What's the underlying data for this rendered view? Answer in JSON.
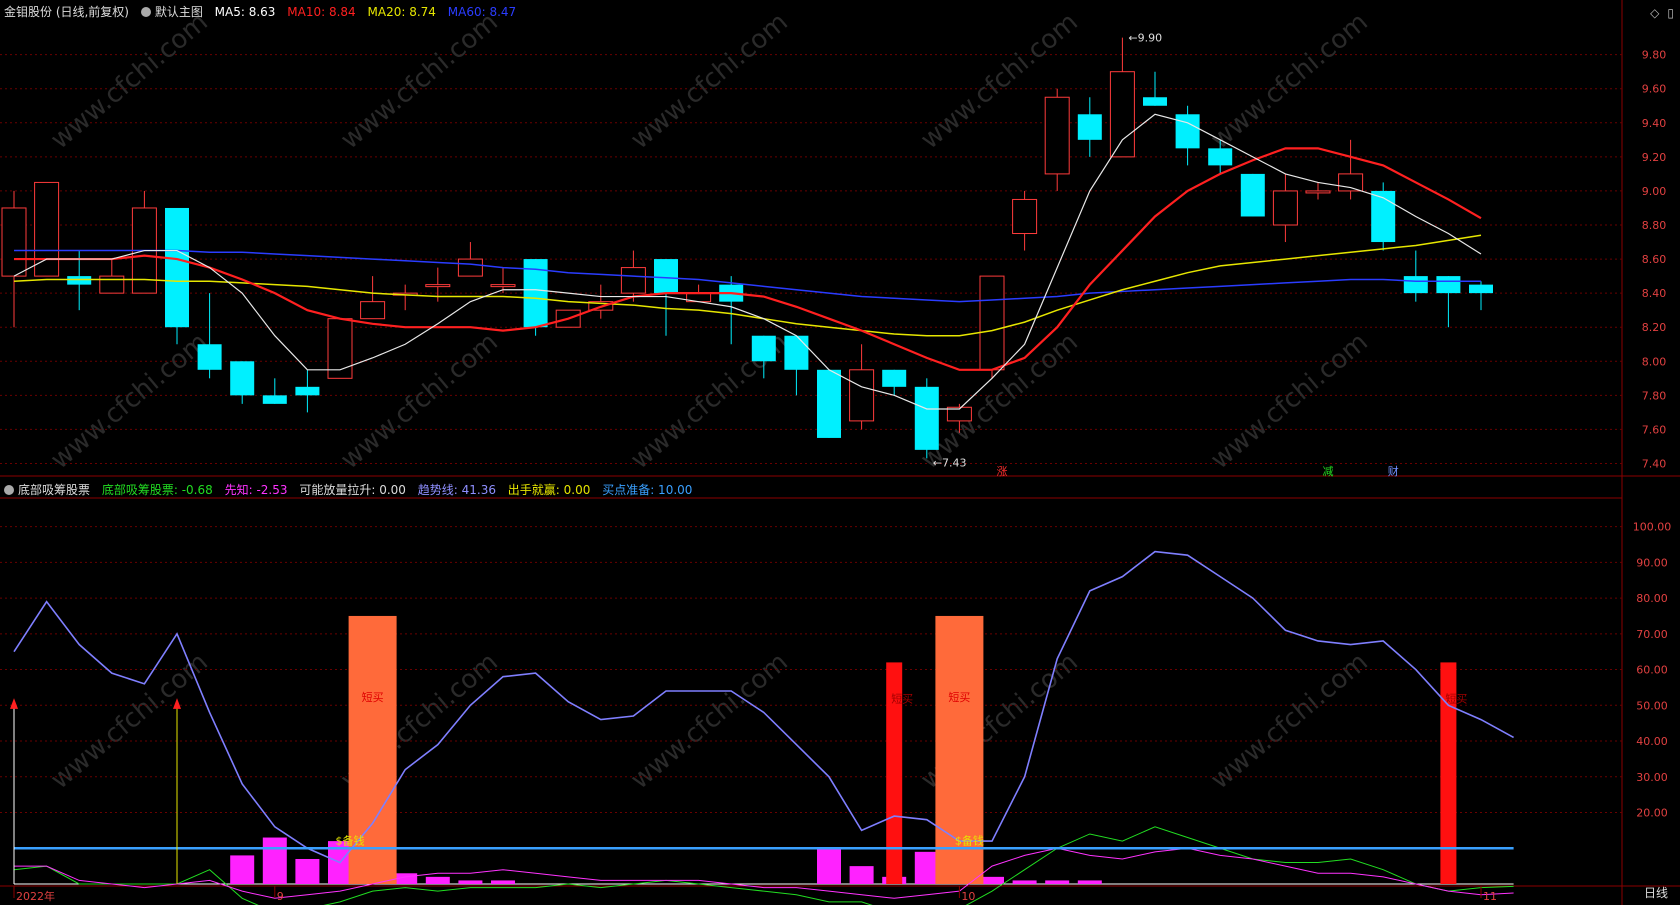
{
  "header_top": {
    "stock": "金钼股份 (日线,前复权)",
    "main_chart": "默认主图",
    "ma": [
      {
        "label": "MA5: 8.63",
        "color": "#ffffff"
      },
      {
        "label": "MA10: 8.84",
        "color": "#ff2020"
      },
      {
        "label": "MA20: 8.74",
        "color": "#e6e600"
      },
      {
        "label": "MA60: 8.47",
        "color": "#2a3cff"
      }
    ]
  },
  "header_bottom": {
    "indicator": "底部吸筹股票",
    "values": [
      {
        "label": "底部吸筹股票: -0.68",
        "color": "#22dd22"
      },
      {
        "label": "先知: -2.53",
        "color": "#ff33ff"
      },
      {
        "label": "可能放量拉升: 0.00",
        "color": "#dddddd"
      },
      {
        "label": "趋势线: 41.36",
        "color": "#8f8fff"
      },
      {
        "label": "出手就赢: 0.00",
        "color": "#e6e600"
      },
      {
        "label": "买点准备: 10.00",
        "color": "#3aa0ff"
      }
    ]
  },
  "toolbar_icons": [
    "diamond-icon",
    "close-icon"
  ],
  "watermark": "www.cfchi.com",
  "period_label": "日线",
  "chart_data": [
    {
      "type": "candlestick",
      "ylim": [
        7.35,
        9.98
      ],
      "yticks": [
        "9.80",
        "9.60",
        "9.40",
        "9.20",
        "9.00",
        "8.80",
        "8.60",
        "8.40",
        "8.20",
        "8.00",
        "7.80",
        "7.60",
        "7.40"
      ],
      "candles": [
        [
          8.5,
          8.9,
          9.0,
          8.2
        ],
        [
          8.5,
          9.05,
          9.05,
          8.5
        ],
        [
          8.5,
          8.45,
          8.65,
          8.3
        ],
        [
          8.4,
          8.5,
          8.6,
          8.4
        ],
        [
          8.4,
          8.9,
          9.0,
          8.4
        ],
        [
          8.9,
          8.2,
          8.9,
          8.1
        ],
        [
          8.1,
          7.95,
          8.4,
          7.9
        ],
        [
          8.0,
          7.8,
          8.0,
          7.75
        ],
        [
          7.8,
          7.75,
          7.9,
          7.75
        ],
        [
          7.85,
          7.8,
          7.95,
          7.7
        ],
        [
          7.9,
          8.25,
          8.25,
          7.9
        ],
        [
          8.25,
          8.35,
          8.5,
          8.25
        ],
        [
          8.4,
          8.4,
          8.45,
          8.3
        ],
        [
          8.45,
          8.45,
          8.55,
          8.35
        ],
        [
          8.5,
          8.6,
          8.7,
          8.5
        ],
        [
          8.45,
          8.45,
          8.55,
          8.4
        ],
        [
          8.6,
          8.2,
          8.6,
          8.15
        ],
        [
          8.2,
          8.3,
          8.3,
          8.2
        ],
        [
          8.3,
          8.35,
          8.45,
          8.25
        ],
        [
          8.4,
          8.55,
          8.65,
          8.35
        ],
        [
          8.6,
          8.4,
          8.6,
          8.15
        ],
        [
          8.35,
          8.4,
          8.45,
          8.35
        ],
        [
          8.45,
          8.35,
          8.5,
          8.1
        ],
        [
          8.15,
          8.0,
          8.15,
          7.9
        ],
        [
          8.15,
          7.95,
          8.15,
          7.8
        ],
        [
          7.95,
          7.55,
          7.95,
          7.55
        ],
        [
          7.65,
          7.95,
          8.1,
          7.6
        ],
        [
          7.95,
          7.85,
          7.95,
          7.8
        ],
        [
          7.85,
          7.48,
          7.9,
          7.43
        ],
        [
          7.65,
          7.73,
          7.75,
          7.58
        ],
        [
          7.95,
          8.5,
          8.5,
          7.9
        ],
        [
          8.75,
          8.95,
          9.0,
          8.65
        ],
        [
          9.1,
          9.55,
          9.6,
          9.0
        ],
        [
          9.45,
          9.3,
          9.55,
          9.2
        ],
        [
          9.2,
          9.7,
          9.9,
          9.2
        ],
        [
          9.55,
          9.5,
          9.7,
          9.5
        ],
        [
          9.45,
          9.25,
          9.5,
          9.15
        ],
        [
          9.25,
          9.15,
          9.3,
          9.1
        ],
        [
          9.1,
          8.85,
          9.1,
          8.85
        ],
        [
          8.8,
          9.0,
          9.1,
          8.7
        ],
        [
          9.0,
          9.0,
          9.05,
          8.95
        ],
        [
          9.0,
          9.1,
          9.3,
          8.95
        ],
        [
          9.0,
          8.7,
          9.05,
          8.65
        ],
        [
          8.5,
          8.4,
          8.65,
          8.35
        ],
        [
          8.5,
          8.4,
          8.5,
          8.2
        ],
        [
          8.45,
          8.4,
          8.47,
          8.3
        ]
      ],
      "ma5": [
        8.5,
        8.6,
        8.6,
        8.6,
        8.65,
        8.65,
        8.55,
        8.4,
        8.15,
        7.95,
        7.95,
        8.02,
        8.1,
        8.22,
        8.35,
        8.42,
        8.42,
        8.4,
        8.38,
        8.38,
        8.38,
        8.35,
        8.32,
        8.25,
        8.15,
        7.95,
        7.85,
        7.8,
        7.72,
        7.72,
        7.9,
        8.1,
        8.55,
        9.0,
        9.3,
        9.45,
        9.4,
        9.3,
        9.2,
        9.1,
        9.05,
        9.02,
        8.96,
        8.85,
        8.75,
        8.63
      ],
      "ma10": [
        8.6,
        8.6,
        8.6,
        8.6,
        8.62,
        8.6,
        8.55,
        8.48,
        8.4,
        8.3,
        8.25,
        8.22,
        8.2,
        8.2,
        8.2,
        8.18,
        8.2,
        8.25,
        8.32,
        8.38,
        8.4,
        8.4,
        8.4,
        8.38,
        8.32,
        8.25,
        8.18,
        8.1,
        8.02,
        7.95,
        7.95,
        8.02,
        8.2,
        8.45,
        8.65,
        8.85,
        9.0,
        9.1,
        9.18,
        9.25,
        9.25,
        9.2,
        9.15,
        9.05,
        8.95,
        8.84
      ],
      "ma20": [
        8.47,
        8.48,
        8.48,
        8.48,
        8.48,
        8.47,
        8.47,
        8.46,
        8.45,
        8.44,
        8.42,
        8.4,
        8.39,
        8.38,
        8.38,
        8.38,
        8.37,
        8.35,
        8.34,
        8.33,
        8.31,
        8.3,
        8.28,
        8.25,
        8.22,
        8.2,
        8.18,
        8.16,
        8.15,
        8.15,
        8.18,
        8.23,
        8.3,
        8.36,
        8.42,
        8.47,
        8.52,
        8.56,
        8.58,
        8.6,
        8.62,
        8.64,
        8.66,
        8.68,
        8.71,
        8.74
      ],
      "ma60": [
        8.65,
        8.65,
        8.65,
        8.65,
        8.65,
        8.65,
        8.64,
        8.64,
        8.63,
        8.62,
        8.61,
        8.6,
        8.59,
        8.58,
        8.57,
        8.55,
        8.54,
        8.52,
        8.51,
        8.5,
        8.49,
        8.48,
        8.46,
        8.44,
        8.42,
        8.4,
        8.38,
        8.37,
        8.36,
        8.35,
        8.36,
        8.37,
        8.38,
        8.4,
        8.41,
        8.42,
        8.43,
        8.44,
        8.45,
        8.46,
        8.47,
        8.48,
        8.48,
        8.47,
        8.47,
        8.47
      ],
      "high_label": "9.90",
      "low_label": "7.43",
      "event_markers": [
        {
          "index": 30,
          "text": "涨",
          "color": "#ff3030"
        },
        {
          "index": 40,
          "text": "减",
          "color": "#22dd22"
        },
        {
          "index": 42,
          "text": "财",
          "color": "#6f8fff"
        }
      ]
    },
    {
      "type": "indicator",
      "ylim": [
        0,
        108
      ],
      "yticks": [
        "100.00",
        "90.00",
        "80.00",
        "70.00",
        "60.00",
        "50.00",
        "40.00",
        "30.00",
        "20.00"
      ],
      "trend_line": [
        65,
        79,
        67,
        59,
        56,
        70,
        48,
        28,
        16,
        10,
        6,
        17,
        32,
        39,
        50,
        58,
        59,
        51,
        46,
        47,
        54,
        54,
        54,
        48,
        39,
        30,
        15,
        19,
        18,
        12,
        12,
        30,
        63,
        82,
        86,
        93,
        92,
        86,
        80,
        71,
        68,
        67,
        68,
        60,
        50,
        46,
        41
      ],
      "buy_ready_level": 10,
      "green_line": [
        4,
        5,
        0,
        0,
        0,
        0,
        4,
        -4,
        -8,
        -7,
        -5,
        -2,
        -1,
        -2,
        -1,
        -1,
        -1,
        0,
        -1,
        0,
        1,
        0,
        -1,
        -2,
        -3,
        -5,
        -5,
        -8,
        -9,
        -7,
        -2,
        4,
        10,
        14,
        12,
        16,
        13,
        10,
        7,
        6,
        6,
        7,
        4,
        0,
        -2,
        -1,
        -0.68
      ],
      "magenta_line": [
        5,
        5,
        1,
        0,
        -1,
        0,
        1,
        -2,
        -4,
        -3,
        -2,
        0,
        2,
        3,
        3,
        4,
        3,
        2,
        1,
        1,
        1,
        1,
        0,
        -1,
        -1,
        -2,
        -3,
        -4,
        -3,
        -2,
        5,
        8,
        10,
        8,
        7,
        9,
        10,
        8,
        7,
        5,
        3,
        3,
        2,
        0,
        -2,
        -3,
        -2.53
      ],
      "magenta_bars": [
        [
          7,
          8
        ],
        [
          8,
          13
        ],
        [
          9,
          7
        ],
        [
          10,
          12
        ],
        [
          12,
          3
        ],
        [
          13,
          2
        ],
        [
          14,
          1
        ],
        [
          15,
          1
        ],
        [
          25,
          10
        ],
        [
          26,
          5
        ],
        [
          27,
          2
        ],
        [
          28,
          9
        ],
        [
          30,
          2
        ],
        [
          31,
          1
        ],
        [
          32,
          1
        ],
        [
          33,
          1
        ]
      ],
      "orange_bars": [
        [
          11,
          75
        ],
        [
          29,
          75
        ]
      ],
      "red_bars": [
        {
          "index": 27,
          "value": 62,
          "label": "短买"
        },
        {
          "index": 44,
          "value": 62,
          "label": "短买"
        }
      ],
      "red_arrows": [
        0,
        5
      ],
      "cash_labels": [
        {
          "index": 10,
          "text": "$备钱"
        },
        {
          "index": 29,
          "text": "$备钱"
        }
      ],
      "orange_bar_label": "短买",
      "date_labels": [
        {
          "index": 0,
          "text": "2022年"
        },
        {
          "index": 8,
          "text": "9"
        },
        {
          "index": 29,
          "text": "10"
        },
        {
          "index": 45,
          "text": "11"
        }
      ]
    }
  ]
}
